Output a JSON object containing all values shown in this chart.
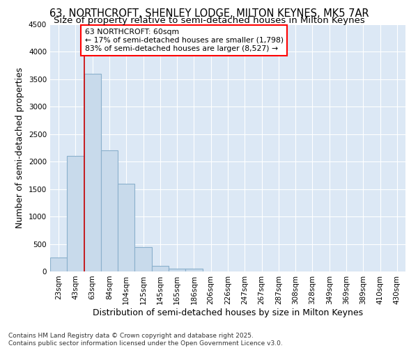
{
  "title1": "63, NORTHCROFT, SHENLEY LODGE, MILTON KEYNES, MK5 7AR",
  "title2": "Size of property relative to semi-detached houses in Milton Keynes",
  "xlabel": "Distribution of semi-detached houses by size in Milton Keynes",
  "ylabel": "Number of semi-detached properties",
  "footer": "Contains HM Land Registry data © Crown copyright and database right 2025.\nContains public sector information licensed under the Open Government Licence v3.0.",
  "categories": [
    "23sqm",
    "43sqm",
    "63sqm",
    "84sqm",
    "104sqm",
    "125sqm",
    "145sqm",
    "165sqm",
    "186sqm",
    "206sqm",
    "226sqm",
    "247sqm",
    "267sqm",
    "287sqm",
    "308sqm",
    "328sqm",
    "349sqm",
    "369sqm",
    "389sqm",
    "410sqm",
    "430sqm"
  ],
  "values": [
    250,
    2100,
    3600,
    2200,
    1600,
    450,
    100,
    50,
    50,
    0,
    0,
    0,
    0,
    0,
    0,
    0,
    0,
    0,
    0,
    0,
    0
  ],
  "bar_color": "#c8daeb",
  "bar_edge_color": "#8ab0cc",
  "highlight_color": "#cc0000",
  "annotation_title": "63 NORTHCROFT: 60sqm",
  "annotation_line1": "← 17% of semi-detached houses are smaller (1,798)",
  "annotation_line2": "83% of semi-detached houses are larger (8,527) →",
  "ylim": [
    0,
    4500
  ],
  "yticks": [
    0,
    500,
    1000,
    1500,
    2000,
    2500,
    3000,
    3500,
    4000,
    4500
  ],
  "fig_background": "#ffffff",
  "plot_background": "#dce8f5",
  "grid_color": "#ffffff",
  "title1_fontsize": 10.5,
  "title2_fontsize": 9.5,
  "axis_label_fontsize": 9,
  "tick_fontsize": 7.5,
  "footer_fontsize": 6.5
}
